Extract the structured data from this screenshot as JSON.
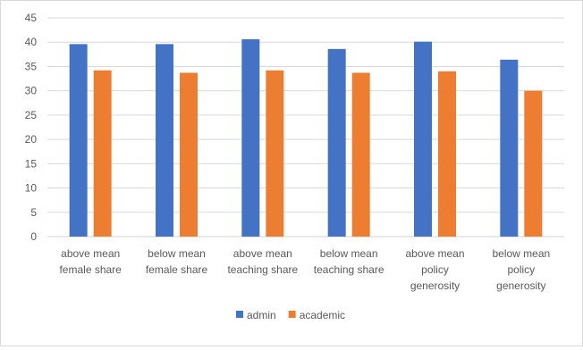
{
  "chart_data": {
    "type": "bar",
    "categories": [
      [
        "above mean",
        "female share"
      ],
      [
        "below mean",
        "female share"
      ],
      [
        "above mean",
        "teaching share"
      ],
      [
        "below mean",
        "teaching share"
      ],
      [
        "above mean",
        "policy",
        "generosity"
      ],
      [
        "below mean",
        "policy",
        "generosity"
      ]
    ],
    "series": [
      {
        "name": "admin",
        "color": "#4472C4",
        "values": [
          39.6,
          39.6,
          40.6,
          38.6,
          40.1,
          36.4
        ]
      },
      {
        "name": "academic",
        "color": "#ED7D31",
        "values": [
          34.2,
          33.7,
          34.2,
          33.7,
          34.0,
          30.0
        ]
      }
    ],
    "ylim": [
      0,
      45
    ],
    "yticks": [
      0,
      5,
      10,
      15,
      20,
      25,
      30,
      35,
      40,
      45
    ],
    "grid": true,
    "legend_position": "bottom"
  }
}
